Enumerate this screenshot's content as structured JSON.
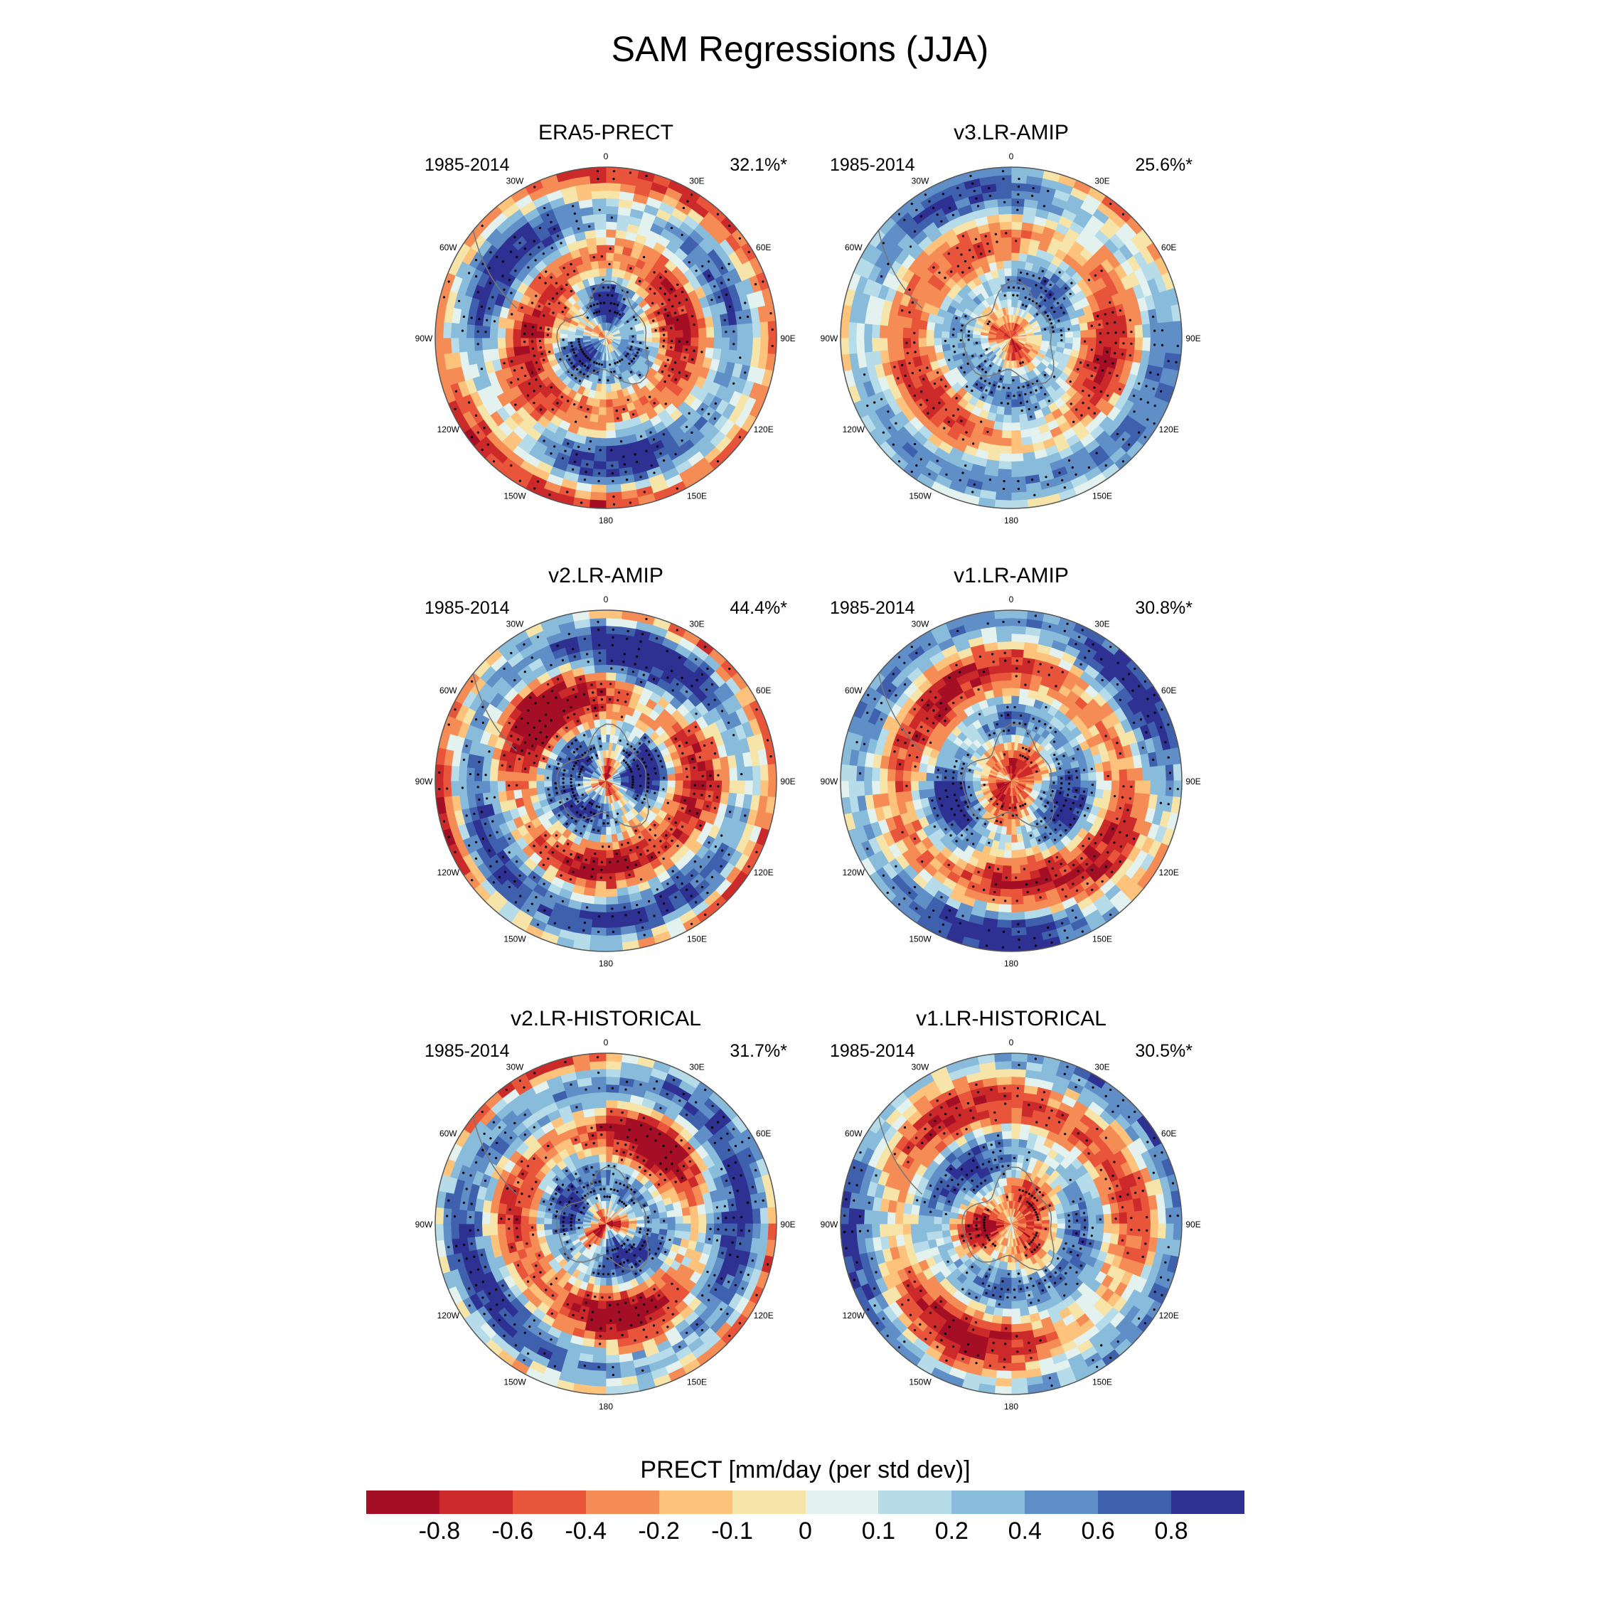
{
  "title": "SAM Regressions (JJA)",
  "colorbar": {
    "label": "PRECT [mm/day (per std dev)]",
    "colors": [
      "#a50f26",
      "#cc2a2a",
      "#e8553a",
      "#f58c55",
      "#fdc27b",
      "#f7e4a8",
      "#e3f1ef",
      "#b6dcea",
      "#89bcdb",
      "#5f8fc6",
      "#3f61ad",
      "#2e3192"
    ],
    "ticks": [
      "-0.8",
      "-0.6",
      "-0.4",
      "-0.2",
      "-0.1",
      "0",
      "0.1",
      "0.2",
      "0.4",
      "0.6",
      "0.8"
    ]
  },
  "map_labels": {
    "lon_0": "0",
    "lon_30e": "30E",
    "lon_60e": "60E",
    "lon_90e": "90E",
    "lon_120e": "120E",
    "lon_150e": "150E",
    "lon_180": "180",
    "lon_150w": "150W",
    "lon_120w": "120W",
    "lon_90w": "90W",
    "lon_60w": "60W",
    "lon_30w": "30W"
  },
  "panels": [
    {
      "title": "ERA5-PRECT",
      "period": "1985-2014",
      "variance_explained": "32.1%*"
    },
    {
      "title": "v3.LR-AMIP",
      "period": "1985-2014",
      "variance_explained": "25.6%*"
    },
    {
      "title": "v2.LR-AMIP",
      "period": "1985-2014",
      "variance_explained": "44.4%*"
    },
    {
      "title": "v1.LR-AMIP",
      "period": "1985-2014",
      "variance_explained": "30.8%*"
    },
    {
      "title": "v2.LR-HISTORICAL",
      "period": "1985-2014",
      "variance_explained": "31.7%*"
    },
    {
      "title": "v1.LR-HISTORICAL",
      "period": "1985-2014",
      "variance_explained": "30.5%*"
    }
  ]
}
